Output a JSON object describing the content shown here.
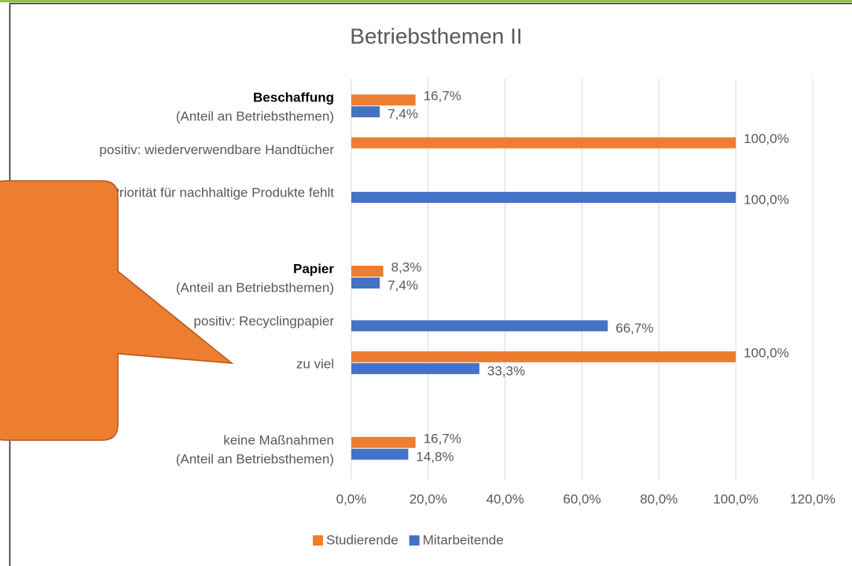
{
  "chart_data": {
    "type": "barh",
    "title": "Betriebsthemen II",
    "categories": [
      [
        "Beschaffung",
        "(Anteil an Betriebsthemen)"
      ],
      [
        "positiv: wiederverwendbare Handtücher"
      ],
      [
        "Priorität für nachhaltige Produkte fehlt"
      ],
      null,
      [
        "Papier",
        "(Anteil an Betriebsthemen)"
      ],
      [
        "positiv: Recyclingpapier"
      ],
      [
        "zu viel"
      ],
      null,
      [
        "keine Maßnahmen",
        "(Anteil an Betriebsthemen)"
      ]
    ],
    "bold_first_line": [
      0,
      4
    ],
    "series": [
      {
        "name": "Studierende",
        "color": "#ed7d31",
        "values": [
          16.7,
          100,
          null,
          null,
          8.3,
          null,
          100,
          null,
          16.7
        ],
        "value_labels": [
          "16,7%",
          "100,0%",
          null,
          null,
          "8,3%",
          null,
          "100,0%",
          null,
          "16,7%"
        ]
      },
      {
        "name": "Mitarbeitende",
        "color": "#4472c4",
        "values": [
          7.4,
          null,
          100,
          null,
          7.4,
          66.7,
          33.3,
          null,
          14.8
        ],
        "value_labels": [
          "7,4%",
          null,
          "100,0%",
          null,
          "7,4%",
          "66,7%",
          "33,3%",
          null,
          "14,8%"
        ]
      }
    ],
    "xlim": [
      0,
      120
    ],
    "xticks": [
      {
        "value": 0,
        "label": "0,0%"
      },
      {
        "value": 20,
        "label": "20,0%"
      },
      {
        "value": 40,
        "label": "40,0%"
      },
      {
        "value": 60,
        "label": "60,0%"
      },
      {
        "value": 80,
        "label": "80,0%"
      },
      {
        "value": 100,
        "label": "100,0%"
      },
      {
        "value": 120,
        "label": "120,0%"
      }
    ],
    "grid": true,
    "legend": "bottom"
  }
}
